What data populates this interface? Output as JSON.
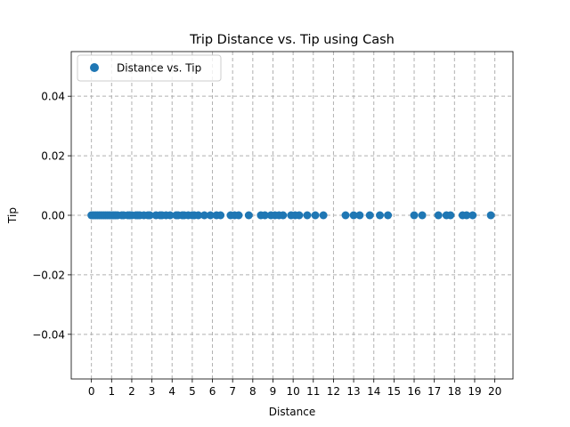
{
  "chart_data": {
    "type": "scatter",
    "title": "Trip Distance vs. Tip using Cash",
    "xlabel": "Distance",
    "ylabel": "Tip",
    "xlim": [
      -1,
      20.9
    ],
    "ylim": [
      -0.055,
      0.055
    ],
    "xticks": [
      0,
      1,
      2,
      3,
      4,
      5,
      6,
      7,
      8,
      9,
      10,
      11,
      12,
      13,
      14,
      15,
      16,
      17,
      18,
      19,
      20
    ],
    "xtick_labels": [
      "0",
      "1",
      "2",
      "3",
      "4",
      "5",
      "6",
      "7",
      "8",
      "9",
      "10",
      "11",
      "12",
      "13",
      "14",
      "15",
      "16",
      "17",
      "18",
      "19",
      "20"
    ],
    "yticks": [
      -0.04,
      -0.02,
      0.0,
      0.02,
      0.04
    ],
    "ytick_labels": [
      "−0.04",
      "−0.02",
      "0.00",
      "0.02",
      "0.04"
    ],
    "grid": true,
    "legend_position": "top-left",
    "series": [
      {
        "name": "Distance vs. Tip",
        "color": "#1f77b4",
        "points": [
          {
            "x": 0.0,
            "y": 0
          },
          {
            "x": 0.1,
            "y": 0
          },
          {
            "x": 0.2,
            "y": 0
          },
          {
            "x": 0.3,
            "y": 0
          },
          {
            "x": 0.4,
            "y": 0
          },
          {
            "x": 0.5,
            "y": 0
          },
          {
            "x": 0.6,
            "y": 0
          },
          {
            "x": 0.7,
            "y": 0
          },
          {
            "x": 0.8,
            "y": 0
          },
          {
            "x": 0.9,
            "y": 0
          },
          {
            "x": 1.0,
            "y": 0
          },
          {
            "x": 1.1,
            "y": 0
          },
          {
            "x": 1.2,
            "y": 0
          },
          {
            "x": 1.3,
            "y": 0
          },
          {
            "x": 1.5,
            "y": 0
          },
          {
            "x": 1.6,
            "y": 0
          },
          {
            "x": 1.8,
            "y": 0
          },
          {
            "x": 1.9,
            "y": 0
          },
          {
            "x": 2.0,
            "y": 0
          },
          {
            "x": 2.2,
            "y": 0
          },
          {
            "x": 2.3,
            "y": 0
          },
          {
            "x": 2.4,
            "y": 0
          },
          {
            "x": 2.6,
            "y": 0
          },
          {
            "x": 2.8,
            "y": 0
          },
          {
            "x": 2.9,
            "y": 0
          },
          {
            "x": 3.2,
            "y": 0
          },
          {
            "x": 3.4,
            "y": 0
          },
          {
            "x": 3.5,
            "y": 0
          },
          {
            "x": 3.7,
            "y": 0
          },
          {
            "x": 3.9,
            "y": 0
          },
          {
            "x": 4.2,
            "y": 0
          },
          {
            "x": 4.3,
            "y": 0
          },
          {
            "x": 4.5,
            "y": 0
          },
          {
            "x": 4.6,
            "y": 0
          },
          {
            "x": 4.8,
            "y": 0
          },
          {
            "x": 5.0,
            "y": 0
          },
          {
            "x": 5.1,
            "y": 0
          },
          {
            "x": 5.3,
            "y": 0
          },
          {
            "x": 5.6,
            "y": 0
          },
          {
            "x": 5.9,
            "y": 0
          },
          {
            "x": 6.2,
            "y": 0
          },
          {
            "x": 6.4,
            "y": 0
          },
          {
            "x": 6.9,
            "y": 0
          },
          {
            "x": 7.1,
            "y": 0
          },
          {
            "x": 7.3,
            "y": 0
          },
          {
            "x": 7.8,
            "y": 0
          },
          {
            "x": 8.4,
            "y": 0
          },
          {
            "x": 8.6,
            "y": 0
          },
          {
            "x": 8.9,
            "y": 0
          },
          {
            "x": 9.1,
            "y": 0
          },
          {
            "x": 9.3,
            "y": 0
          },
          {
            "x": 9.5,
            "y": 0
          },
          {
            "x": 9.9,
            "y": 0
          },
          {
            "x": 10.1,
            "y": 0
          },
          {
            "x": 10.3,
            "y": 0
          },
          {
            "x": 10.7,
            "y": 0
          },
          {
            "x": 11.1,
            "y": 0
          },
          {
            "x": 11.5,
            "y": 0
          },
          {
            "x": 12.6,
            "y": 0
          },
          {
            "x": 13.0,
            "y": 0
          },
          {
            "x": 13.3,
            "y": 0
          },
          {
            "x": 13.8,
            "y": 0
          },
          {
            "x": 14.3,
            "y": 0
          },
          {
            "x": 14.7,
            "y": 0
          },
          {
            "x": 16.0,
            "y": 0
          },
          {
            "x": 16.4,
            "y": 0
          },
          {
            "x": 17.2,
            "y": 0
          },
          {
            "x": 17.6,
            "y": 0
          },
          {
            "x": 17.8,
            "y": 0
          },
          {
            "x": 18.4,
            "y": 0
          },
          {
            "x": 18.6,
            "y": 0
          },
          {
            "x": 18.9,
            "y": 0
          },
          {
            "x": 19.8,
            "y": 0
          }
        ]
      }
    ]
  }
}
